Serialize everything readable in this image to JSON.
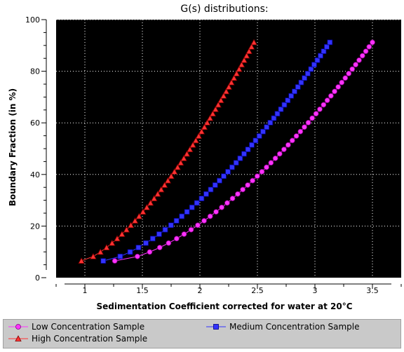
{
  "chart_data": {
    "type": "scatter",
    "title": "G(s) distributions:",
    "xlabel": "Sedimentation Coefficient corrected for water at 20°C",
    "ylabel": "Boundary Fraction (in %)",
    "xlim": [
      0.75,
      3.75
    ],
    "ylim": [
      0,
      100
    ],
    "x_ticks": [
      1,
      1.5,
      2,
      2.5,
      3,
      3.5
    ],
    "x_tick_labels": [
      "1",
      "1.5",
      "2",
      "2.5",
      "3",
      "3.5"
    ],
    "y_ticks": [
      0,
      20,
      40,
      60,
      80,
      100
    ],
    "y_tick_labels": [
      "0",
      "20",
      "40",
      "60",
      "80",
      "100"
    ],
    "background": "#000000",
    "grid": true,
    "legend_position": "bottom",
    "series": [
      {
        "name": "Low Concentration Sample",
        "marker": "circle",
        "color": "#ff33ff",
        "edge_color": "#800080",
        "line_color": "#ff33ff",
        "x_start": 1.26,
        "x_end": 3.5,
        "y_start": 6.5,
        "y_end": 91.2,
        "count": 50,
        "curve_exponent": 1.6
      },
      {
        "name": "Medium Concentration Sample",
        "marker": "square",
        "color": "#3333ff",
        "edge_color": "#000080",
        "line_color": "#3333ff",
        "x_start": 1.16,
        "x_end": 3.13,
        "y_start": 6.5,
        "y_end": 91.2,
        "count": 50,
        "curve_exponent": 1.5
      },
      {
        "name": "High Concentration Sample",
        "marker": "triangle",
        "color": "#ff3333",
        "edge_color": "#800000",
        "line_color": "#ff3333",
        "x_start": 0.97,
        "x_end": 2.47,
        "y_start": 6.5,
        "y_end": 91.2,
        "count": 50,
        "curve_exponent": 1.45
      }
    ]
  }
}
